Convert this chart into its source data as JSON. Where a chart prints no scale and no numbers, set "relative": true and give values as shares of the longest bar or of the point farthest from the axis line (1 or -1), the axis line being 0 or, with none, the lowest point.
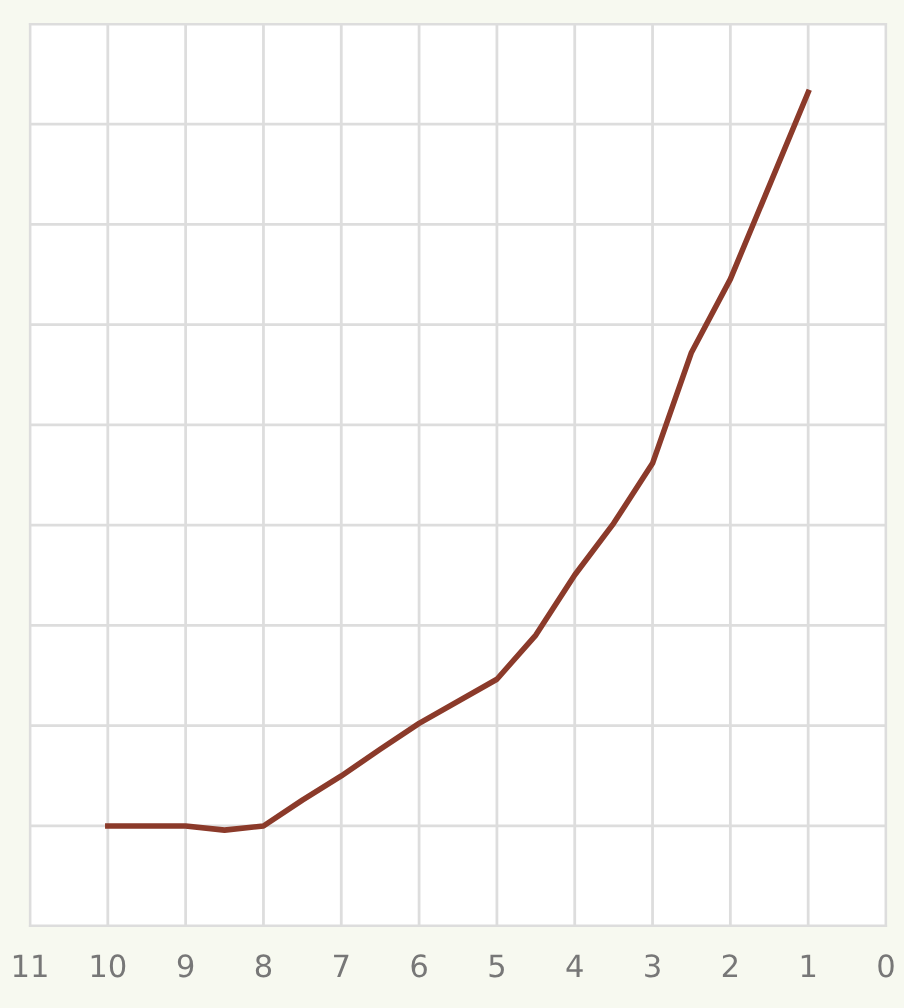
{
  "chart_data": {
    "type": "line",
    "relative": true,
    "x": [
      10,
      9,
      8.5,
      8,
      7.5,
      7,
      6.5,
      6,
      5,
      4.5,
      4,
      3.5,
      3,
      2.5,
      2,
      1
    ],
    "series": [
      {
        "color": "#8b3a2a",
        "values": [
          0.12,
          0.12,
          0.115,
          0.12,
          0.151,
          0.18,
          0.212,
          0.243,
          0.296,
          0.349,
          0.421,
          0.483,
          0.555,
          0.688,
          0.776,
          1
        ]
      }
    ],
    "xlim": [
      11,
      0
    ],
    "xticks": [
      11,
      10,
      9,
      8,
      7,
      6,
      5,
      4,
      3,
      2,
      1,
      0
    ],
    "grid": true,
    "marker": "none",
    "line_style": "solid",
    "tick_labels": "x"
  }
}
